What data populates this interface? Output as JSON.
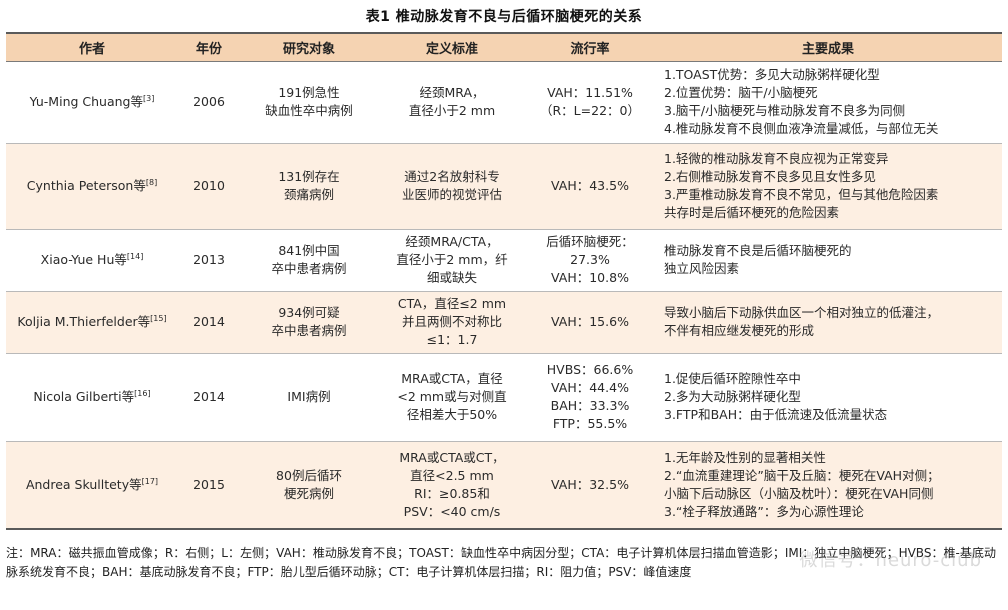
{
  "caption": "表1  椎动脉发育不良与后循环脑梗死的关系",
  "table": {
    "headers": [
      "作者",
      "年份",
      "研究对象",
      "定义标准",
      "流行率",
      "主要成果"
    ],
    "rows": [
      {
        "author": "Yu-Ming Chuang等",
        "ref": "[3]",
        "year": "2006",
        "subject": [
          "191例急性",
          "缺血性卒中病例"
        ],
        "criteria": [
          "经颈MRA，",
          "直径小于2 mm"
        ],
        "prevalence": [
          "VAH：11.51%",
          "（R：L=22：0）"
        ],
        "findings": [
          "1.TOAST优势：多见大动脉粥样硬化型",
          "2.位置优势：脑干/小脑梗死",
          "3.脑干/小脑梗死与椎动脉发育不良多为同侧",
          "4.椎动脉发育不良侧血液净流量减低，与部位无关"
        ]
      },
      {
        "author": "Cynthia Peterson等",
        "ref": "[8]",
        "year": "2010",
        "subject": [
          "131例存在",
          "颈痛病例"
        ],
        "criteria": [
          "通过2名放射科专",
          "业医师的视觉评估"
        ],
        "prevalence": [
          "VAH：43.5%"
        ],
        "findings": [
          "1.轻微的椎动脉发育不良应视为正常变异",
          "2.右侧椎动脉发育不良多见且女性多见",
          "3.严重椎动脉发育不良不常见，但与其他危险因素",
          "共存时是后循环梗死的危险因素"
        ]
      },
      {
        "author": "Xiao-Yue Hu等",
        "ref": "[14]",
        "year": "2013",
        "subject": [
          "841例中国",
          "卒中患者病例"
        ],
        "criteria": [
          "经颈MRA/CTA，",
          "直径小于2 mm，纤",
          "细或缺失"
        ],
        "prevalence": [
          "后循环脑梗死：",
          "27.3%",
          "VAH：10.8%"
        ],
        "findings": [
          "椎动脉发育不良是后循环脑梗死的",
          "独立风险因素"
        ]
      },
      {
        "author": "Koljia M.Thierfelder等",
        "ref": "[15]",
        "year": "2014",
        "subject": [
          "934例可疑",
          "卒中患者病例"
        ],
        "criteria": [
          "CTA，直径≤2 mm",
          "并且两侧不对称比",
          "≤1：1.7"
        ],
        "prevalence": [
          "VAH：15.6%"
        ],
        "findings": [
          "导致小脑后下动脉供血区一个相对独立的低灌注，",
          "不伴有相应继发梗死的形成"
        ]
      },
      {
        "author": "Nicola Gilberti等",
        "ref": "[16]",
        "year": "2014",
        "subject": [
          "IMI病例"
        ],
        "criteria": [
          "MRA或CTA，直径",
          "<2 mm或与对侧直",
          "径相差大于50%"
        ],
        "prevalence": [
          "HVBS：66.6%",
          "VAH：44.4%",
          "BAH：33.3%",
          "FTP：55.5%"
        ],
        "findings": [
          "1.促使后循环腔隙性卒中",
          "2.多为大动脉粥样硬化型",
          "3.FTP和BAH：由于低流速及低流量状态"
        ]
      },
      {
        "author": "Andrea Skulltety等",
        "ref": "[17]",
        "year": "2015",
        "subject": [
          "80例后循环",
          "梗死病例"
        ],
        "criteria": [
          "MRA或CTA或CT，",
          "直径<2.5 mm",
          "RI：≥0.85和",
          "PSV：<40 cm/s"
        ],
        "prevalence": [
          "VAH：32.5%"
        ],
        "findings": [
          "1.无年龄及性别的显著相关性",
          "2.“血流重建理论”脑干及丘脑：梗死在VAH对侧；",
          "小脑下后动脉区（小脑及枕叶）：梗死在VAH同侧",
          "3.“栓子释放通路”：多为心源性理论"
        ]
      }
    ]
  },
  "note": "注：MRA：磁共振血管成像；R：右侧；L：左侧；VAH：椎动脉发育不良；TOAST：缺血性卒中病因分型；CTA：电子计算机体层扫描血管造影；IMI：独立中脑梗死；HVBS：椎-基底动脉系统发育不良；BAH：基底动脉发育不良；FTP：胎儿型后循环动脉；CT：电子计算机体层扫描；RI：阻力值；PSV：峰值速度",
  "watermark": "微信号：neuro-club"
}
